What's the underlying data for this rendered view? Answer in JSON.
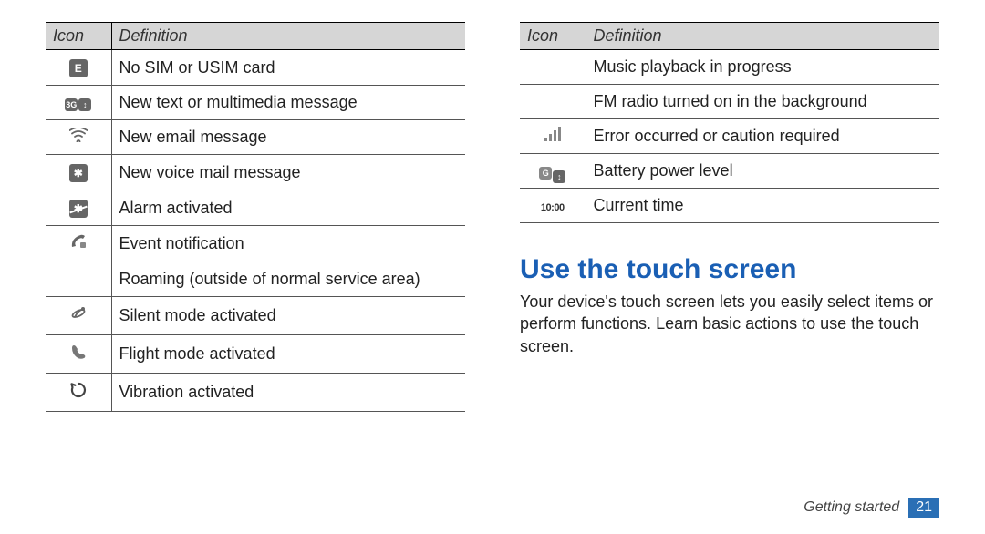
{
  "tableHeader": {
    "icon": "Icon",
    "definition": "Definition"
  },
  "leftTable": {
    "rows": [
      {
        "iconType": "box-e",
        "def": "No SIM or USIM card"
      },
      {
        "iconType": "box-3g",
        "def": "New text or multimedia message"
      },
      {
        "iconType": "wifi",
        "def": "New email message"
      },
      {
        "iconType": "box-bt",
        "def": "New voice mail message"
      },
      {
        "iconType": "box-bt-strike",
        "def": "Alarm activated"
      },
      {
        "iconType": "note",
        "def": "Event notification"
      },
      {
        "iconType": "blank",
        "def": "Roaming (outside of normal service area)"
      },
      {
        "iconType": "sat",
        "def": "Silent mode activated"
      },
      {
        "iconType": "phone",
        "def": "Flight mode activated"
      },
      {
        "iconType": "sync",
        "def": "Vibration activated"
      }
    ]
  },
  "rightTable": {
    "rows": [
      {
        "iconType": "blank",
        "def": "Music playback in progress"
      },
      {
        "iconType": "blank",
        "def": "FM radio turned on in the background"
      },
      {
        "iconType": "bars",
        "def": "Error occurred or caution required"
      },
      {
        "iconType": "double-box",
        "def": "Battery power level"
      },
      {
        "iconType": "time",
        "iconText": "10:00",
        "def": "Current time"
      }
    ]
  },
  "section": {
    "heading": "Use the touch screen",
    "body": "Your device's touch screen lets you easily select items or perform functions. Learn basic actions to use the touch screen."
  },
  "footer": {
    "label": "Getting started",
    "page": "21"
  },
  "colors": {
    "headingColor": "#1a5fb4",
    "headerBg": "#d6d6d6",
    "footerBg": "#2a6fb5",
    "textColor": "#222222",
    "borderColor": "#555555",
    "iconGray": "#666666"
  }
}
